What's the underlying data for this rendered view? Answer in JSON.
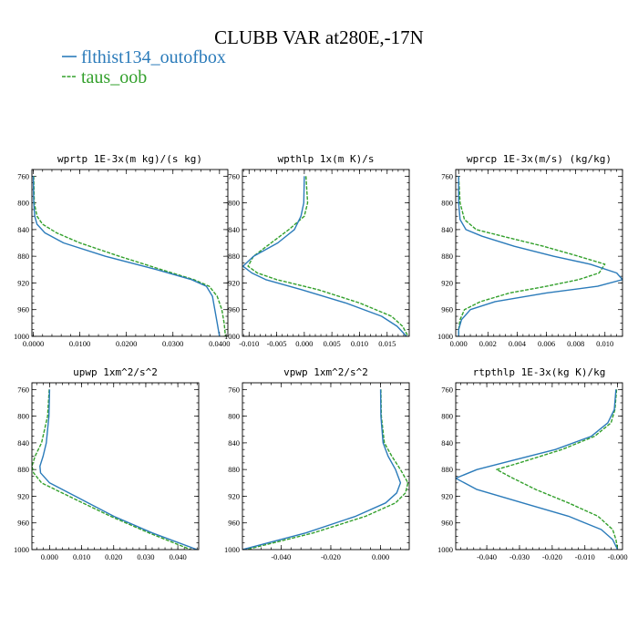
{
  "title": "CLUBB VAR at280E,-17N",
  "legend": [
    {
      "label": "flthist134_outofbox",
      "color": "#2b7bba",
      "style": "solid"
    },
    {
      "label": "taus_oob",
      "color": "#33a02c",
      "style": "dashed"
    }
  ],
  "chart_data": [
    {
      "type": "line",
      "title": "wprtp  1E-3x(m kg)/(s kg)",
      "xlim": [
        -0.0003,
        0.0418
      ],
      "ylim": [
        1000,
        750
      ],
      "xticks": [
        "0.0000",
        "0.0100",
        "0.0200",
        "0.0300",
        "0.0400"
      ],
      "xtick_values": [
        0,
        0.01,
        0.02,
        0.03,
        0.04
      ],
      "yticks": [
        "760",
        "800",
        "840",
        "880",
        "920",
        "960",
        "1000"
      ],
      "y": [
        760,
        800,
        820,
        832,
        845,
        860,
        880,
        900,
        915,
        925,
        940,
        960,
        980,
        1000
      ],
      "series": [
        {
          "name": "flthist134_outofbox",
          "values": [
            0.0,
            0.0001,
            0.0003,
            0.0008,
            0.0025,
            0.0065,
            0.0155,
            0.0265,
            0.034,
            0.0372,
            0.0385,
            0.039,
            0.0395,
            0.04
          ]
        },
        {
          "name": "taus_oob",
          "values": [
            0.0001,
            0.0002,
            0.0008,
            0.002,
            0.005,
            0.01,
            0.0185,
            0.0275,
            0.0345,
            0.0378,
            0.0395,
            0.0405,
            0.041,
            0.0413
          ]
        }
      ]
    },
    {
      "type": "line",
      "title": "wpthlp  1x(m K)/s",
      "xlim": [
        -0.0112,
        0.019
      ],
      "ylim": [
        1000,
        750
      ],
      "xticks": [
        "-0.010",
        "-0.005",
        "0.000",
        "0.005",
        "0.010",
        "0.015"
      ],
      "xtick_values": [
        -0.01,
        -0.005,
        0,
        0.005,
        0.01,
        0.015
      ],
      "yticks": [
        "760",
        "800",
        "840",
        "880",
        "920",
        "960",
        "1000"
      ],
      "y": [
        760,
        800,
        820,
        840,
        860,
        880,
        895,
        905,
        915,
        930,
        950,
        970,
        985,
        1000
      ],
      "series": [
        {
          "name": "flthist134_outofbox",
          "values": [
            0.0,
            -0.0001,
            -0.0006,
            -0.0018,
            -0.0048,
            -0.0092,
            -0.0111,
            -0.0095,
            -0.007,
            -0.0005,
            0.0075,
            0.014,
            0.0168,
            0.0185
          ]
        },
        {
          "name": "taus_oob",
          "values": [
            0.0003,
            0.0006,
            0.0,
            -0.0028,
            -0.006,
            -0.0092,
            -0.0102,
            -0.0085,
            -0.005,
            0.0025,
            0.01,
            0.0158,
            0.0178,
            0.0188
          ]
        }
      ]
    },
    {
      "type": "line",
      "title": "wprcp  1E-3x(m/s) (kg/kg)",
      "xlim": [
        -0.0002,
        0.0112
      ],
      "ylim": [
        1000,
        750
      ],
      "xticks": [
        "0.000",
        "0.002",
        "0.004",
        "0.006",
        "0.008",
        "0.010"
      ],
      "xtick_values": [
        0,
        0.002,
        0.004,
        0.006,
        0.008,
        0.01
      ],
      "yticks": [
        "760",
        "800",
        "840",
        "880",
        "920",
        "960",
        "1000"
      ],
      "y": [
        760,
        800,
        825,
        840,
        850,
        865,
        880,
        892,
        905,
        915,
        925,
        935,
        948,
        960,
        975,
        990,
        1000
      ],
      "series": [
        {
          "name": "flthist134_outofbox",
          "values": [
            0.0,
            0.0,
            0.0001,
            0.0005,
            0.0016,
            0.0038,
            0.0065,
            0.009,
            0.0108,
            0.0112,
            0.0095,
            0.006,
            0.0025,
            0.0008,
            0.0002,
            0.0,
            0.0
          ]
        },
        {
          "name": "taus_oob",
          "values": [
            0.0,
            0.0001,
            0.0004,
            0.0012,
            0.003,
            0.0058,
            0.0082,
            0.01,
            0.0096,
            0.0082,
            0.006,
            0.0035,
            0.0015,
            0.0004,
            0.0001,
            0.0,
            0.0
          ]
        }
      ]
    },
    {
      "type": "line",
      "title": "upwp  1xm^2/s^2",
      "xlim": [
        -0.0055,
        0.0465
      ],
      "ylim": [
        1000,
        750
      ],
      "xticks": [
        "0.000",
        "0.010",
        "0.020",
        "0.030",
        "0.040"
      ],
      "xtick_values": [
        0,
        0.01,
        0.02,
        0.03,
        0.04
      ],
      "yticks": [
        "760",
        "800",
        "840",
        "880",
        "920",
        "960",
        "1000"
      ],
      "y": [
        760,
        800,
        840,
        860,
        875,
        885,
        900,
        920,
        950,
        975,
        1000
      ],
      "series": [
        {
          "name": "flthist134_outofbox",
          "values": [
            0.0,
            -0.0002,
            -0.001,
            -0.002,
            -0.003,
            -0.0028,
            0.0,
            0.008,
            0.02,
            0.032,
            0.046
          ]
        },
        {
          "name": "taus_oob",
          "values": [
            -0.0001,
            -0.0006,
            -0.0025,
            -0.0045,
            -0.0055,
            -0.005,
            -0.0025,
            0.006,
            0.019,
            0.031,
            0.044
          ]
        }
      ]
    },
    {
      "type": "line",
      "title": "vpwp  1xm^2/s^2",
      "xlim": [
        -0.0555,
        0.0115
      ],
      "ylim": [
        1000,
        750
      ],
      "xticks": [
        "-0.040",
        "-0.020",
        "0.000"
      ],
      "xtick_values": [
        -0.04,
        -0.02,
        0
      ],
      "yticks": [
        "760",
        "800",
        "840",
        "880",
        "920",
        "960",
        "1000"
      ],
      "y": [
        760,
        800,
        840,
        860,
        880,
        900,
        915,
        930,
        950,
        975,
        1000
      ],
      "series": [
        {
          "name": "flthist134_outofbox",
          "values": [
            0.0,
            0.0001,
            0.001,
            0.003,
            0.006,
            0.008,
            0.0065,
            0.002,
            -0.01,
            -0.03,
            -0.0555
          ]
        },
        {
          "name": "taus_oob",
          "values": [
            0.0001,
            0.0003,
            0.0015,
            0.0045,
            0.008,
            0.011,
            0.01,
            0.006,
            -0.006,
            -0.027,
            -0.054
          ]
        }
      ]
    },
    {
      "type": "line",
      "title": "rtpthlp  1E-3x(kg K)/kg",
      "xlim": [
        -0.0495,
        0.0015
      ],
      "ylim": [
        1000,
        750
      ],
      "xticks": [
        "-0.040",
        "-0.030",
        "-0.020",
        "-0.010",
        "-0.000"
      ],
      "xtick_values": [
        -0.04,
        -0.03,
        -0.02,
        -0.01,
        0
      ],
      "yticks": [
        "760",
        "800",
        "840",
        "880",
        "920",
        "960",
        "1000"
      ],
      "y": [
        760,
        790,
        810,
        830,
        850,
        870,
        880,
        893,
        910,
        930,
        950,
        970,
        985,
        1000
      ],
      "series": [
        {
          "name": "flthist134_outofbox",
          "values": [
            -0.0005,
            -0.001,
            -0.003,
            -0.008,
            -0.019,
            -0.035,
            -0.043,
            -0.0495,
            -0.043,
            -0.029,
            -0.015,
            -0.005,
            -0.0015,
            0.0
          ]
        },
        {
          "name": "taus_oob",
          "values": [
            -0.0003,
            -0.0008,
            -0.002,
            -0.007,
            -0.017,
            -0.03,
            -0.037,
            -0.032,
            -0.025,
            -0.015,
            -0.006,
            -0.0015,
            -0.0005,
            0.0
          ]
        }
      ]
    }
  ]
}
